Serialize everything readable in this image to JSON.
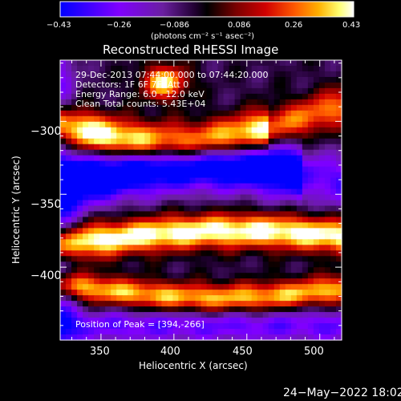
{
  "chart_data": {
    "type": "heatmap",
    "title": "Reconstructed RHESSI Image",
    "xlabel": "Heliocentric X (arcsec)",
    "ylabel": "Heliocentric Y (arcsec)",
    "xlim": [
      322,
      515
    ],
    "ylim": [
      -450,
      -258
    ],
    "x_ticks": [
      350,
      400,
      450,
      500
    ],
    "x_tick_labels": [
      "350",
      "400",
      "450",
      "500"
    ],
    "y_ticks": [
      -300,
      -350,
      -400
    ],
    "y_tick_labels": [
      "−300",
      "−350",
      "−400"
    ],
    "colorbar": {
      "range": [
        -0.43,
        0.43
      ],
      "tick_labels": [
        "−0.43",
        "−0.26",
        "−0.086",
        "0.086",
        "0.26",
        "0.43"
      ],
      "units": "(photons cm⁻² s⁻¹ asec⁻²)",
      "colors": [
        "#0000ff",
        "#8000ff",
        "#6a1fa0",
        "#200030",
        "#000000",
        "#7a0000",
        "#d00000",
        "#ff5a00",
        "#ffb000",
        "#ffff70",
        "#ffffff"
      ]
    },
    "annotations": [
      "29-Dec-2013 07:44:00.000 to 07:44:20.000",
      "Detectors: 1F 6F 7F, Att 0",
      "Energy Range: 6.0 - 12.0 keV",
      "Clean    Total counts: 5.43E+04",
      "Position of Peak = [394,-266]"
    ],
    "peak_position": [
      394,
      -266
    ],
    "peak_value": 0.43
  },
  "footer": {
    "date": "24−May−2022 18:02"
  }
}
